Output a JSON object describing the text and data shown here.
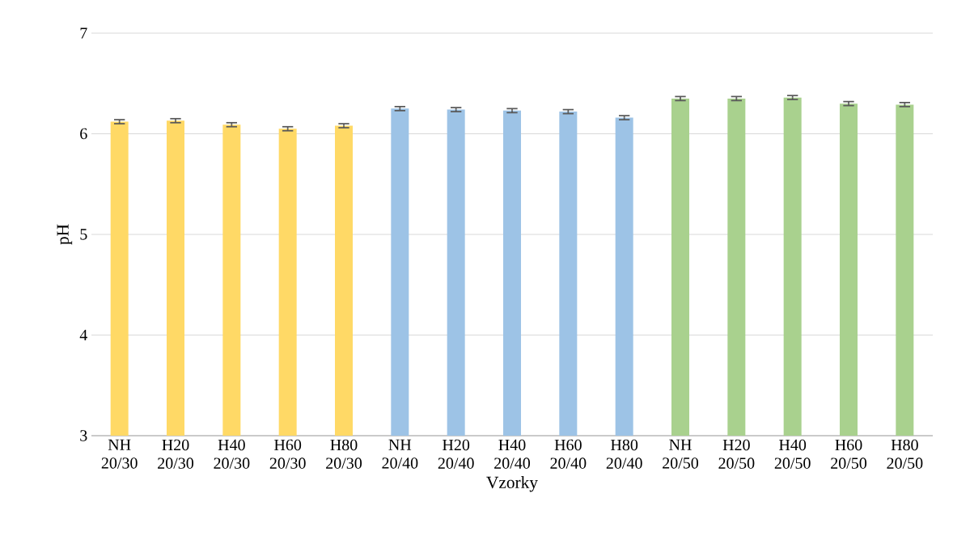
{
  "chart_data": {
    "type": "bar",
    "xlabel": "Vzorky",
    "ylabel": "pH",
    "categories": [
      "NH 20/30",
      "H20 20/30",
      "H40 20/30",
      "H60 20/30",
      "H80 20/30",
      "NH 20/40",
      "H20 20/40",
      "H40 20/40",
      "H60 20/40",
      "H80 20/40",
      "NH 20/50",
      "H20 20/50",
      "H40 20/50",
      "H60 20/50",
      "H80 20/50"
    ],
    "values": [
      6.12,
      6.13,
      6.09,
      6.05,
      6.08,
      6.25,
      6.24,
      6.23,
      6.22,
      6.16,
      6.35,
      6.35,
      6.36,
      6.3,
      6.29
    ],
    "errors": [
      0.02,
      0.02,
      0.02,
      0.02,
      0.02,
      0.02,
      0.02,
      0.02,
      0.02,
      0.02,
      0.02,
      0.02,
      0.02,
      0.02,
      0.02
    ],
    "colors": [
      "#ffd966",
      "#ffd966",
      "#ffd966",
      "#ffd966",
      "#ffd966",
      "#9dc3e6",
      "#9dc3e6",
      "#9dc3e6",
      "#9dc3e6",
      "#9dc3e6",
      "#a9d18e",
      "#a9d18e",
      "#a9d18e",
      "#a9d18e",
      "#a9d18e"
    ],
    "ylim": [
      3,
      7
    ],
    "yticks": [
      3,
      4,
      5,
      6,
      7
    ],
    "grid": "y"
  }
}
